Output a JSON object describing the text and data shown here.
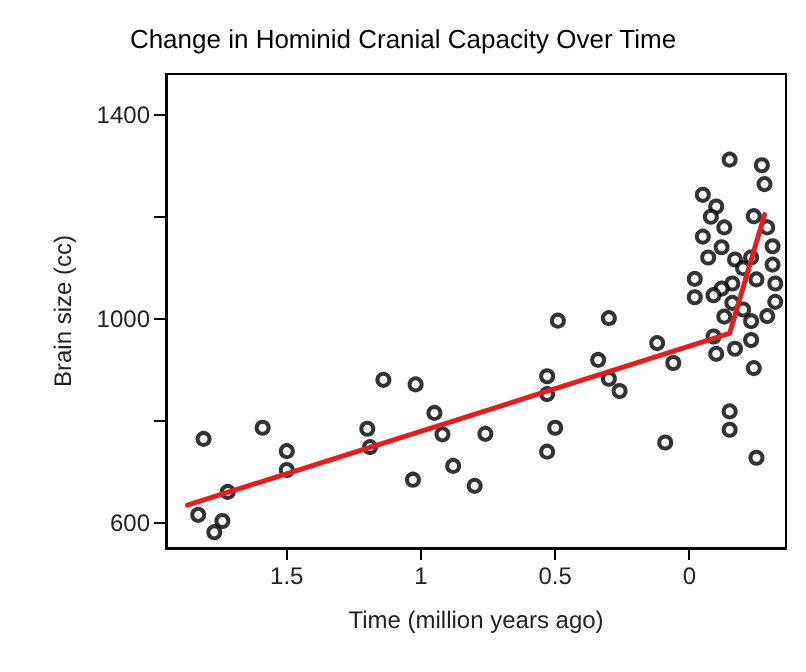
{
  "chart_data": {
    "type": "scatter",
    "title": "Change in Hominid Cranial Capacity Over Time",
    "xlabel": "Time (million years ago)",
    "ylabel": "Brain size (cc)",
    "xlim": [
      1.95,
      -0.36
    ],
    "xticks": [
      1.5,
      1,
      0.5,
      0
    ],
    "ylim": [
      550,
      1480
    ],
    "yticks": [
      600,
      {
        "value": 800,
        "label": null
      },
      1000,
      {
        "value": 1200,
        "label": null
      },
      1400
    ],
    "grid": false,
    "series": [
      {
        "color": "#000000",
        "marker": "circle",
        "x": [
          1.83,
          1.81,
          1.77,
          1.74,
          1.72,
          1.59,
          1.5,
          1.5,
          1.2,
          1.19,
          1.14,
          1.02,
          1.03,
          0.95,
          0.92,
          0.88,
          0.8,
          0.76,
          0.53,
          0.53,
          0.49,
          0.5,
          0.53,
          0.34,
          0.3,
          0.3,
          0.26,
          0.12,
          0.06,
          0.09,
          -0.15,
          -0.27,
          -0.28,
          -0.05,
          -0.1,
          -0.08,
          -0.13,
          -0.24,
          -0.29,
          -0.05,
          -0.12,
          -0.31,
          -0.07,
          -0.17,
          -0.23,
          -0.2,
          -0.31,
          -0.02,
          -0.16,
          -0.12,
          -0.09,
          -0.25,
          -0.32,
          -0.02,
          -0.16,
          -0.2,
          -0.32,
          -0.13,
          -0.23,
          -0.29,
          -0.09,
          -0.23,
          -0.1,
          -0.17,
          -0.24,
          -0.15,
          -0.15,
          -0.25
        ],
        "values": [
          615,
          764,
          581,
          603,
          660,
          786,
          740,
          703,
          784,
          748,
          880,
          871,
          684,
          815,
          773,
          711,
          672,
          774,
          887,
          852,
          996,
          786,
          739,
          919,
          1001,
          882,
          858,
          952,
          913,
          757,
          1312,
          1301,
          1264,
          1243,
          1220,
          1200,
          1179,
          1201,
          1179,
          1161,
          1140,
          1142,
          1120,
          1116,
          1120,
          1099,
          1106,
          1078,
          1069,
          1059,
          1046,
          1077,
          1069,
          1042,
          1031,
          1018,
          1033,
          1004,
          995,
          1005,
          965,
          958,
          931,
          941,
          903,
          818,
          782,
          727
        ]
      },
      {
        "type": "line",
        "color": "#e02020",
        "marker": "none",
        "line_style": "solid",
        "x": [
          1.87,
          -0.15,
          -0.28
        ],
        "values": [
          634,
          971,
          1204
        ]
      }
    ]
  }
}
